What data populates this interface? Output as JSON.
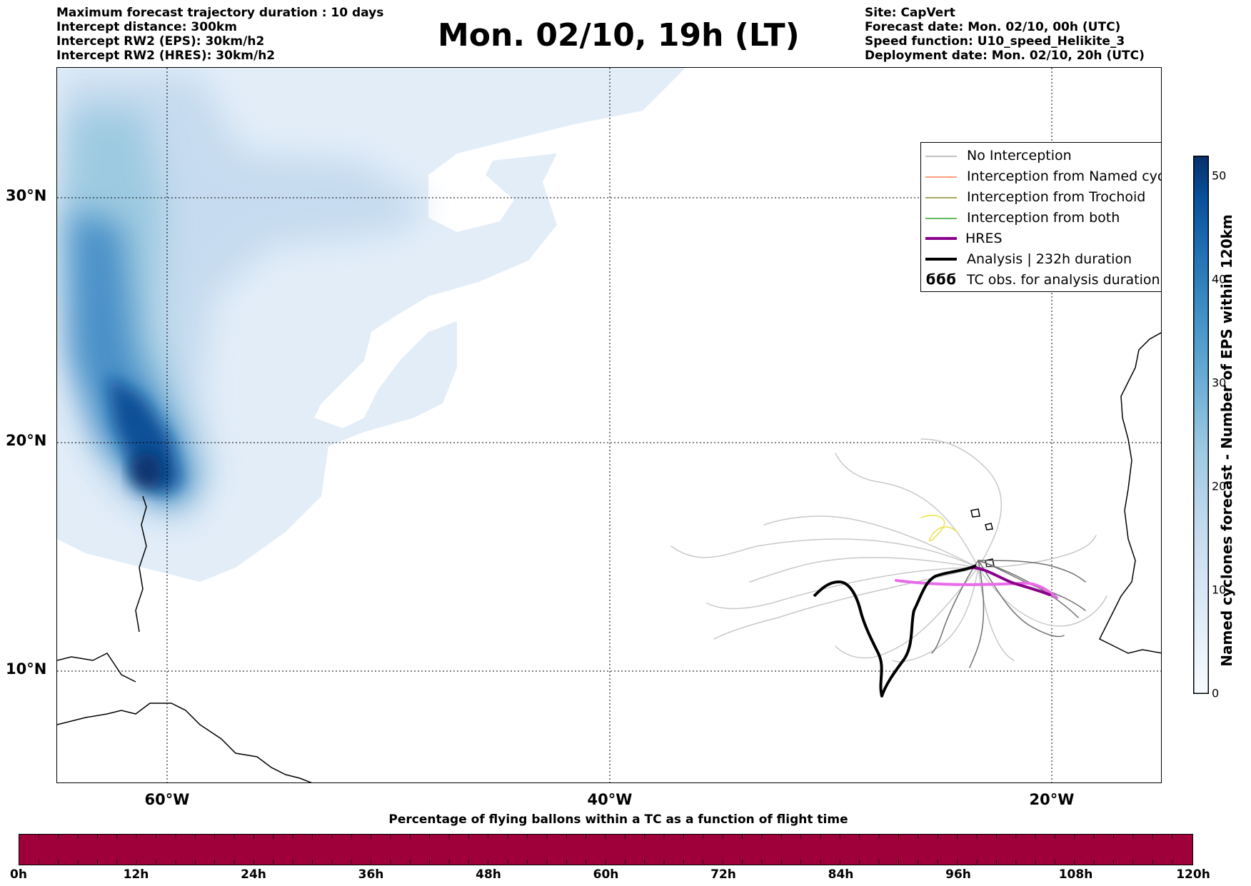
{
  "header_left": [
    "Maximum forecast trajectory duration : 10 days",
    "Intercept distance: 300km",
    "Intercept RW2 (EPS):  30km/h2",
    "Intercept RW2 (HRES): 30km/h2"
  ],
  "header_right": [
    "Site: CapVert",
    "Forecast date: Mon. 02/10, 00h (UTC)",
    "Speed function: U10_speed_Helikite_3",
    "Deployment date: Mon. 02/10, 20h (UTC)"
  ],
  "title": "Mon. 02/10, 19h (LT)",
  "map": {
    "lat_labels": [
      "30°N",
      "20°N",
      "10°N"
    ],
    "lon_labels": [
      "60°W",
      "40°W",
      "20°W"
    ],
    "legend": [
      {
        "label": "No Interception",
        "color": "#808080",
        "width": 1
      },
      {
        "label": "Interception from Named cyclone",
        "color": "#ff7f50",
        "width": 1.5
      },
      {
        "label": "Interception from Trochoid",
        "color": "#8b8b2a",
        "width": 1.5
      },
      {
        "label": "Interception from both",
        "color": "#2ca02c",
        "width": 1.5
      },
      {
        "label": "HRES",
        "color": "#8b008b",
        "width": 4
      },
      {
        "label": "Analysis | 232h duration",
        "color": "#000000",
        "width": 4
      },
      {
        "label": "TC obs. for analysis duration",
        "symbol": "ϭϭϭ",
        "color": "#000000"
      }
    ]
  },
  "colorbar": {
    "label": "Named cyclones forecast - Number of EPS within 120km",
    "ticks": [
      "0",
      "10",
      "20",
      "30",
      "40",
      "50"
    ],
    "colors": [
      "#f7fbff",
      "#deebf7",
      "#c6dbef",
      "#9ecae1",
      "#6baed6",
      "#4292c6",
      "#2171b5",
      "#08519c",
      "#08306b"
    ]
  },
  "flight_time_bar": {
    "title": "Percentage of flying ballons within a TC as a function of flight time",
    "labels": [
      "0h",
      "12h",
      "24h",
      "36h",
      "48h",
      "60h",
      "72h",
      "84h",
      "96h",
      "108h",
      "120h"
    ],
    "color": "#a0003a"
  }
}
